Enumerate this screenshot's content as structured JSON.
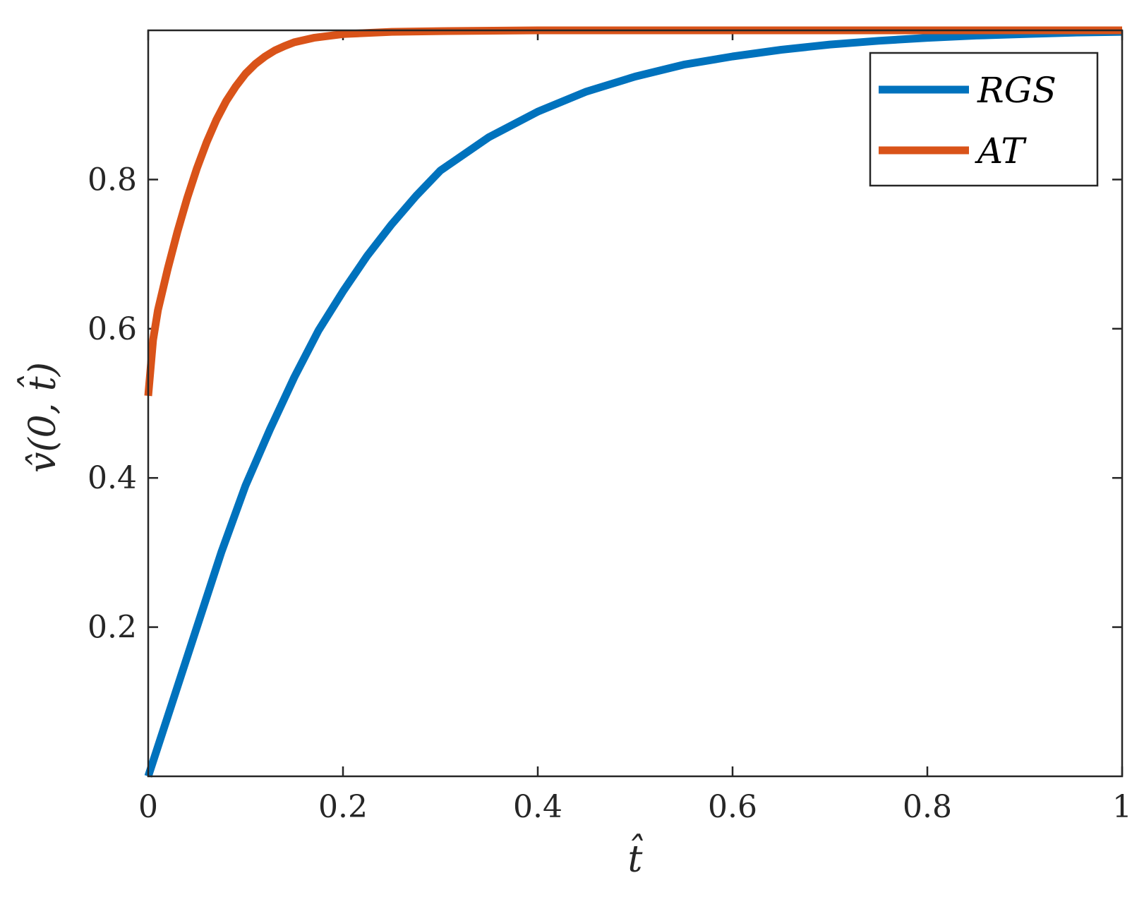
{
  "chart_data": {
    "type": "line",
    "title": "",
    "xlabel": "t̂",
    "ylabel": "v̂(0, t̂)",
    "xlim": [
      0,
      1
    ],
    "ylim": [
      0,
      1
    ],
    "xticks": [
      0,
      0.2,
      0.4,
      0.6,
      0.8,
      1
    ],
    "xtick_labels": [
      "0",
      "0.2",
      "0.4",
      "0.6",
      "0.8",
      "1"
    ],
    "yticks": [
      0.2,
      0.4,
      0.6,
      0.8
    ],
    "ytick_labels": [
      "0.2",
      "0.4",
      "0.6",
      "0.8"
    ],
    "grid": false,
    "legend_position": "top-right",
    "series": [
      {
        "name": "RGS",
        "color": "#0072BD",
        "x": [
          0,
          0.025,
          0.05,
          0.075,
          0.1,
          0.125,
          0.15,
          0.175,
          0.2,
          0.225,
          0.25,
          0.275,
          0.3,
          0.35,
          0.4,
          0.45,
          0.5,
          0.55,
          0.6,
          0.65,
          0.7,
          0.75,
          0.8,
          0.85,
          0.9,
          0.95,
          1.0
        ],
        "y": [
          0.0,
          0.1,
          0.2,
          0.3,
          0.39,
          0.465,
          0.535,
          0.598,
          0.65,
          0.698,
          0.74,
          0.778,
          0.812,
          0.857,
          0.891,
          0.918,
          0.938,
          0.954,
          0.965,
          0.974,
          0.981,
          0.986,
          0.99,
          0.993,
          0.995,
          0.997,
          0.998
        ]
      },
      {
        "name": "AT",
        "color": "#D95319",
        "x": [
          0,
          0.005,
          0.01,
          0.02,
          0.03,
          0.04,
          0.05,
          0.06,
          0.07,
          0.08,
          0.09,
          0.1,
          0.11,
          0.12,
          0.13,
          0.14,
          0.15,
          0.17,
          0.2,
          0.25,
          0.3,
          0.4,
          0.5,
          0.7,
          1.0
        ],
        "y": [
          0.51,
          0.585,
          0.625,
          0.68,
          0.73,
          0.775,
          0.815,
          0.85,
          0.88,
          0.905,
          0.925,
          0.942,
          0.955,
          0.965,
          0.973,
          0.979,
          0.984,
          0.99,
          0.995,
          0.998,
          0.999,
          1.0,
          1.0,
          1.0,
          1.0
        ]
      }
    ]
  }
}
